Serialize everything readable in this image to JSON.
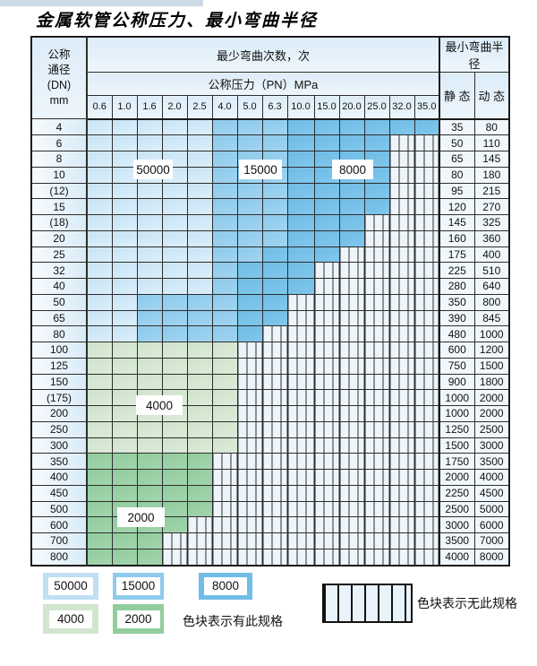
{
  "title": "金属软管公称压力、最小弯曲半径",
  "colors": {
    "light_blue_50000": "#bfe0f4",
    "medium_blue_15000": "#8fcbec",
    "dark_blue_8000": "#6fbde7",
    "light_green_4000": "#d2e6cf",
    "medium_green_2000": "#93cd9e",
    "hatch_bg": "#edf5fb",
    "header_bg": "#dcecf8",
    "border": "#1b1b1b"
  },
  "table": {
    "header": {
      "dn_lines": [
        "公称",
        "通径",
        "(DN)",
        "mm"
      ],
      "cycles": "最少弯曲次数，次",
      "pressure": "公称压力（PN）MPa",
      "radius": "最小弯曲半径",
      "static": "静 态",
      "dynamic": "动 态",
      "pressures": [
        "0.6",
        "1.0",
        "1.6",
        "2.0",
        "2.5",
        "4.0",
        "5.0",
        "6.3",
        "10.0",
        "15.0",
        "20.0",
        "25.0",
        "32.0",
        "35.0"
      ]
    },
    "shade_codes": {
      "L": "50000 cycles (light blue)",
      "M": "15000 cycles (medium blue)",
      "D": "8000 cycles (dark blue)",
      "G": "4000 cycles (light green)",
      "E": "2000 cycles (medium green)",
      "X": "no such specification (hatched)"
    },
    "rows": [
      {
        "dn": "4",
        "cells": "LLLLLMMMDDDDDD",
        "static": "35",
        "dynamic": "80"
      },
      {
        "dn": "6",
        "cells": "LLLLLMMMDDDDXX",
        "static": "50",
        "dynamic": "110"
      },
      {
        "dn": "8",
        "cells": "LLLLLMMMDDDDXX",
        "static": "65",
        "dynamic": "145"
      },
      {
        "dn": "10",
        "cells": "LLLLLMMMDDDDXX",
        "static": "80",
        "dynamic": "180"
      },
      {
        "dn": "(12)",
        "cells": "LLLLLMMMDDDDXX",
        "static": "95",
        "dynamic": "215"
      },
      {
        "dn": "15",
        "cells": "LLLLLMMMDDDDXX",
        "static": "120",
        "dynamic": "270"
      },
      {
        "dn": "(18)",
        "cells": "LLLLLMMMDDDXXX",
        "static": "145",
        "dynamic": "325"
      },
      {
        "dn": "20",
        "cells": "LLLLLMMMDDDXXX",
        "static": "160",
        "dynamic": "360"
      },
      {
        "dn": "25",
        "cells": "LLLLLMMDDDXXXX",
        "static": "175",
        "dynamic": "400"
      },
      {
        "dn": "32",
        "cells": "LLLLLMDDDXXXXX",
        "static": "225",
        "dynamic": "510"
      },
      {
        "dn": "40",
        "cells": "LLLLLMDDDXXXXX",
        "static": "280",
        "dynamic": "640"
      },
      {
        "dn": "50",
        "cells": "LLMMMMDDXXXXXX",
        "static": "350",
        "dynamic": "800"
      },
      {
        "dn": "65",
        "cells": "LLMMMMDDXXXXXX",
        "static": "390",
        "dynamic": "845"
      },
      {
        "dn": "80",
        "cells": "LLMMMMDXXXXXXX",
        "static": "480",
        "dynamic": "1000"
      },
      {
        "dn": "100",
        "cells": "GGGGGGXXXXXXXX",
        "static": "600",
        "dynamic": "1200"
      },
      {
        "dn": "125",
        "cells": "GGGGGGXXXXXXXX",
        "static": "750",
        "dynamic": "1500"
      },
      {
        "dn": "150",
        "cells": "GGGGGGXXXXXXXX",
        "static": "900",
        "dynamic": "1800"
      },
      {
        "dn": "(175)",
        "cells": "GGGGGGXXXXXXXX",
        "static": "1000",
        "dynamic": "2000"
      },
      {
        "dn": "200",
        "cells": "GGGGGGXXXXXXXX",
        "static": "1000",
        "dynamic": "2000"
      },
      {
        "dn": "250",
        "cells": "GGGGGGXXXXXXXX",
        "static": "1250",
        "dynamic": "2500"
      },
      {
        "dn": "300",
        "cells": "GGGGGGXXXXXXXX",
        "static": "1500",
        "dynamic": "3000"
      },
      {
        "dn": "350",
        "cells": "EEEEEXXXXXXXXX",
        "static": "1750",
        "dynamic": "3500"
      },
      {
        "dn": "400",
        "cells": "EEEEEXXXXXXXXX",
        "static": "2000",
        "dynamic": "4000"
      },
      {
        "dn": "450",
        "cells": "EEEEEXXXXXXXXX",
        "static": "2250",
        "dynamic": "4500"
      },
      {
        "dn": "500",
        "cells": "EEEEEXXXXXXXXX",
        "static": "2500",
        "dynamic": "5000"
      },
      {
        "dn": "600",
        "cells": "EEEEXXXXXXXXXX",
        "static": "3000",
        "dynamic": "6000"
      },
      {
        "dn": "700",
        "cells": "EEEXXXXXXXXXXX",
        "static": "3500",
        "dynamic": "7000"
      },
      {
        "dn": "800",
        "cells": "EEEXXXXXXXXXXX",
        "static": "4000",
        "dynamic": "8000"
      }
    ]
  },
  "overlay_labels": [
    {
      "id": "ov-50000",
      "text": "50000"
    },
    {
      "id": "ov-15000",
      "text": "15000"
    },
    {
      "id": "ov-8000",
      "text": "8000"
    },
    {
      "id": "ov-4000",
      "text": "4000"
    },
    {
      "id": "ov-2000",
      "text": "2000"
    }
  ],
  "legend": {
    "chips": [
      {
        "label": "50000"
      },
      {
        "label": "15000"
      },
      {
        "label": "8000"
      },
      {
        "label": "4000"
      },
      {
        "label": "2000"
      }
    ],
    "note_has": "色块表示有此规格",
    "note_none": "色块表示无此规格"
  }
}
